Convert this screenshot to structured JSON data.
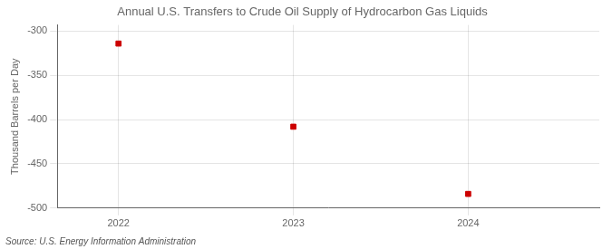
{
  "chart_data": {
    "type": "scatter",
    "title": "Annual U.S. Transfers to Crude Oil Supply of Hydrocarbon Gas Liquids",
    "y_label": "Thousand Barrels per Day",
    "annotations": [
      "Source: U.S. Energy Information Administration"
    ],
    "x": [
      2022,
      2023,
      2024
    ],
    "values": [
      -314,
      -408,
      -484
    ],
    "color": "#cc0000",
    "marker": "square",
    "xlim": [
      2021.65,
      2024.75
    ],
    "xticks": [
      2022,
      2023,
      2024
    ],
    "ylim": [
      -500,
      -293
    ],
    "yticks": [
      -300,
      -350,
      -400,
      -450,
      -500
    ],
    "grid": true
  }
}
